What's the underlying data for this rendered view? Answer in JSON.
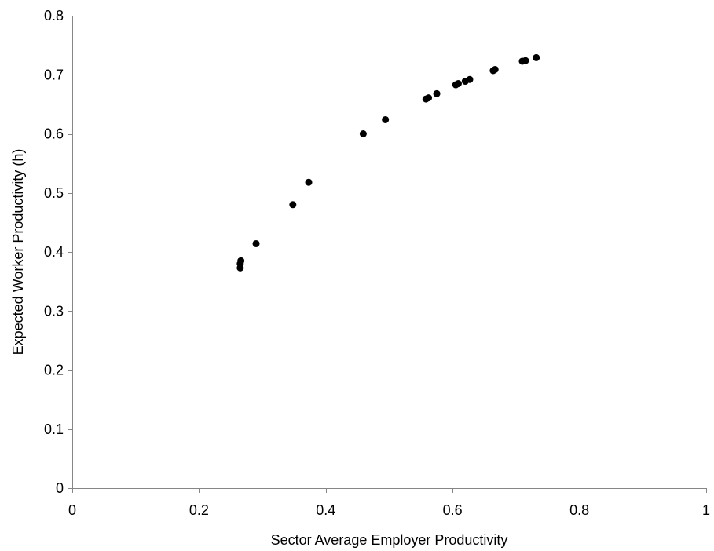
{
  "chart_data": {
    "type": "scatter",
    "title": "",
    "xlabel": "Sector Average Employer Productivity",
    "ylabel": "Expected Worker Productivity (h)",
    "xlim": [
      0,
      1
    ],
    "ylim": [
      0,
      0.8
    ],
    "x_ticks": [
      "0",
      "0.2",
      "0.4",
      "0.6",
      "0.8",
      "1"
    ],
    "y_ticks": [
      "0",
      "0.1",
      "0.2",
      "0.3",
      "0.4",
      "0.5",
      "0.6",
      "0.7",
      "0.8"
    ],
    "x_tick_values": [
      0,
      0.2,
      0.4,
      0.6,
      0.8,
      1
    ],
    "y_tick_values": [
      0,
      0.1,
      0.2,
      0.3,
      0.4,
      0.5,
      0.6,
      0.7,
      0.8
    ],
    "grid": false,
    "legend": "none",
    "marker_color": "#000000",
    "series": [
      {
        "points": [
          {
            "x": 0.265,
            "y": 0.373
          },
          {
            "x": 0.265,
            "y": 0.38
          },
          {
            "x": 0.266,
            "y": 0.385
          },
          {
            "x": 0.29,
            "y": 0.414
          },
          {
            "x": 0.348,
            "y": 0.48
          },
          {
            "x": 0.373,
            "y": 0.518
          },
          {
            "x": 0.459,
            "y": 0.6
          },
          {
            "x": 0.494,
            "y": 0.624
          },
          {
            "x": 0.558,
            "y": 0.659
          },
          {
            "x": 0.562,
            "y": 0.661
          },
          {
            "x": 0.575,
            "y": 0.668
          },
          {
            "x": 0.605,
            "y": 0.683
          },
          {
            "x": 0.609,
            "y": 0.685
          },
          {
            "x": 0.62,
            "y": 0.689
          },
          {
            "x": 0.627,
            "y": 0.692
          },
          {
            "x": 0.664,
            "y": 0.707
          },
          {
            "x": 0.667,
            "y": 0.709
          },
          {
            "x": 0.71,
            "y": 0.723
          },
          {
            "x": 0.715,
            "y": 0.724
          },
          {
            "x": 0.732,
            "y": 0.729
          }
        ]
      }
    ]
  }
}
